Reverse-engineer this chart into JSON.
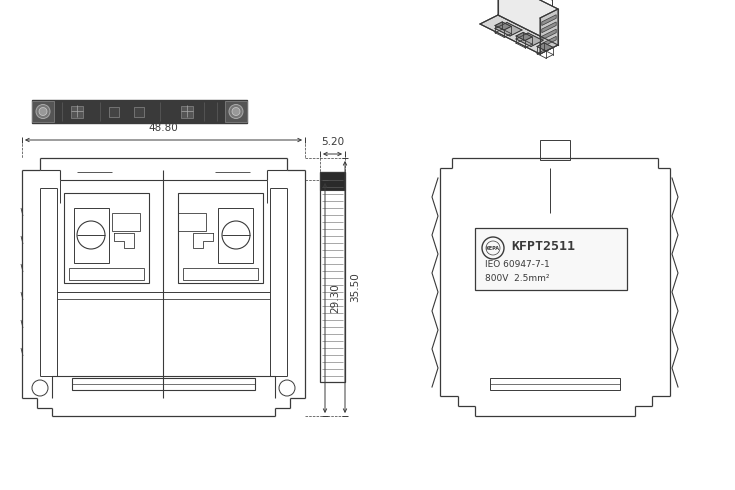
{
  "bg_color": "#ffffff",
  "line_color": "#3a3a3a",
  "dim_color": "#3a3a3a",
  "dim_48_80": "48.80",
  "dim_29_30": "29.30",
  "dim_35_50": "35.50",
  "dim_5_20": "5.20",
  "model": "KFPT2511",
  "iso_line": "IEO 60947-7-1",
  "voltage_line": "800V  2.5mm²",
  "logo_text": "KEPA"
}
